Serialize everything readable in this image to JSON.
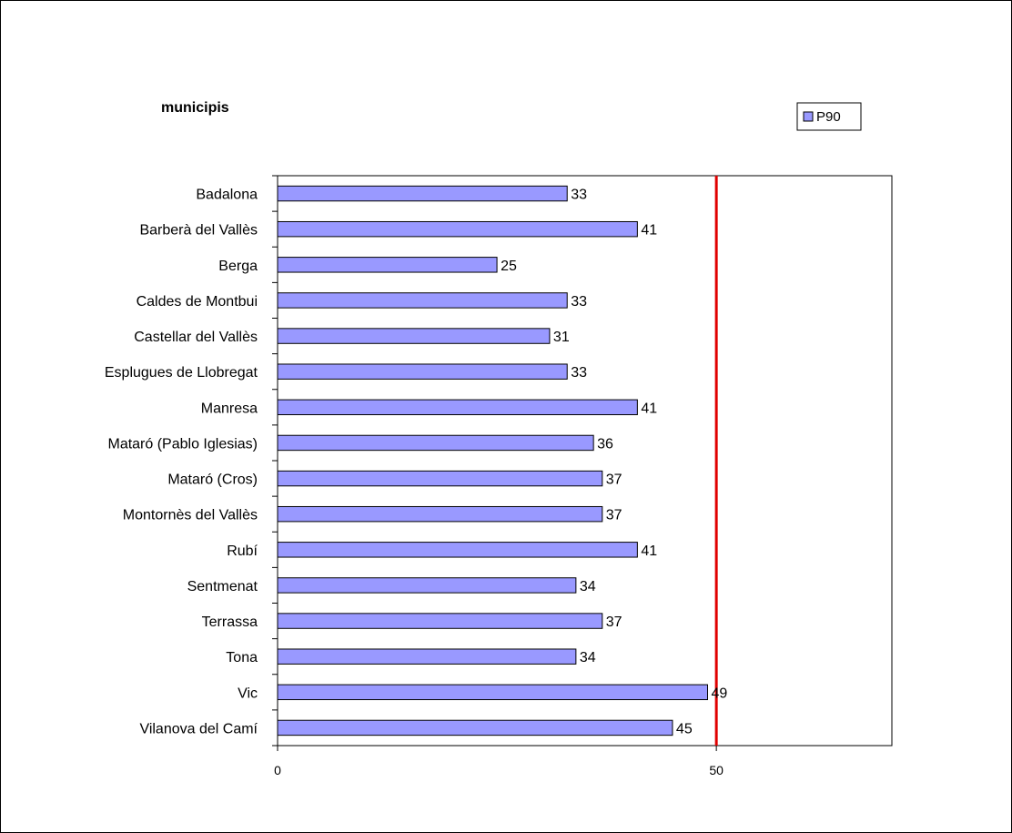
{
  "chart_data": {
    "type": "bar",
    "orientation": "horizontal",
    "title": "municipis",
    "categories": [
      "Badalona",
      "Barberà del Vallès",
      "Berga",
      "Caldes de Montbui",
      "Castellar del Vallès",
      "Esplugues de Llobregat",
      "Manresa",
      "Mataró (Pablo Iglesias)",
      "Mataró (Cros)",
      "Montornès del Vallès",
      "Rubí",
      "Sentmenat",
      "Terrassa",
      "Tona",
      "Vic",
      "Vilanova del Camí"
    ],
    "series": [
      {
        "name": "P90",
        "color": "#9999ff",
        "values": [
          33,
          41,
          25,
          33,
          31,
          33,
          41,
          36,
          37,
          37,
          41,
          34,
          37,
          34,
          49,
          45
        ]
      }
    ],
    "xlim": [
      0,
      70
    ],
    "xticks": [
      0,
      50
    ],
    "reference_line": {
      "value": 50,
      "color": "#e00000"
    },
    "legend": {
      "placement": "top-right"
    },
    "grid": false
  }
}
